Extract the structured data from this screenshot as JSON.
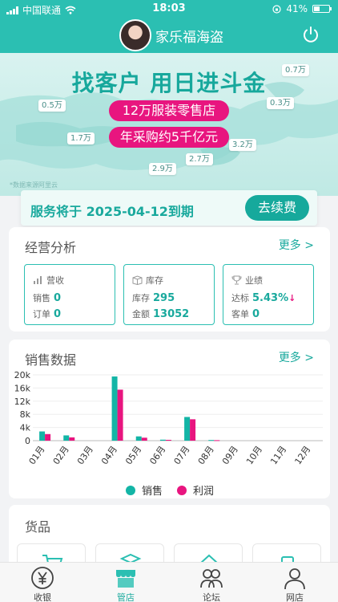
{
  "status_bar": {
    "carrier": "中国联通",
    "time": "18:03",
    "battery": "41%",
    "battery_level": 0.41
  },
  "header": {
    "title": "家乐福海盗",
    "avatar": "avatar-photo",
    "power_icon": "power-icon"
  },
  "banner": {
    "headline": "找客户 用日进斗金",
    "pill1": "12万服装零售店",
    "pill2": "年采购约5千亿元",
    "tags": [
      "0.7万",
      "0.5万",
      "0.3万",
      "1.7万",
      "3.2万",
      "2.7万",
      "2.9万"
    ],
    "disclaimer": "*数据来源阿里云"
  },
  "service": {
    "text": "服务将于 2025-04-12到期",
    "button": "去续费"
  },
  "business": {
    "title": "经营分析",
    "more": "更多 >",
    "cards": [
      {
        "title": "营收",
        "icon": "chart-icon",
        "rows": [
          {
            "label": "销售",
            "value": "0"
          },
          {
            "label": "订单",
            "value": "0"
          }
        ]
      },
      {
        "title": "库存",
        "icon": "box-icon",
        "rows": [
          {
            "label": "库存",
            "value": "295"
          },
          {
            "label": "金额",
            "value": "13052"
          }
        ]
      },
      {
        "title": "业绩",
        "icon": "trophy-icon",
        "rows": [
          {
            "label": "达标",
            "value": "5.43%",
            "arrow": "↓"
          },
          {
            "label": "客单",
            "value": "0"
          }
        ]
      }
    ]
  },
  "sales": {
    "title": "销售数据",
    "more": "更多 >"
  },
  "chart_data": {
    "type": "bar",
    "categories": [
      "01月",
      "02月",
      "03月",
      "04月",
      "05月",
      "06月",
      "07月",
      "08月",
      "09月",
      "10月",
      "11月",
      "12月"
    ],
    "series": [
      {
        "name": "销售",
        "color": "#13b5a6",
        "values": [
          2800,
          1600,
          0,
          19500,
          1300,
          300,
          7200,
          200,
          0,
          0,
          0,
          0
        ]
      },
      {
        "name": "利润",
        "color": "#e8157f",
        "values": [
          2000,
          1000,
          0,
          15500,
          900,
          250,
          6500,
          150,
          0,
          0,
          0,
          0
        ]
      }
    ],
    "yticks": [
      "20k",
      "16k",
      "12k",
      "8k",
      "4k",
      "0"
    ],
    "ylim": [
      0,
      20000
    ],
    "legend": "bottom"
  },
  "goods": {
    "title": "货品"
  },
  "tabbar": {
    "items": [
      "收银",
      "管店",
      "论坛",
      "网店"
    ],
    "active": 1
  }
}
